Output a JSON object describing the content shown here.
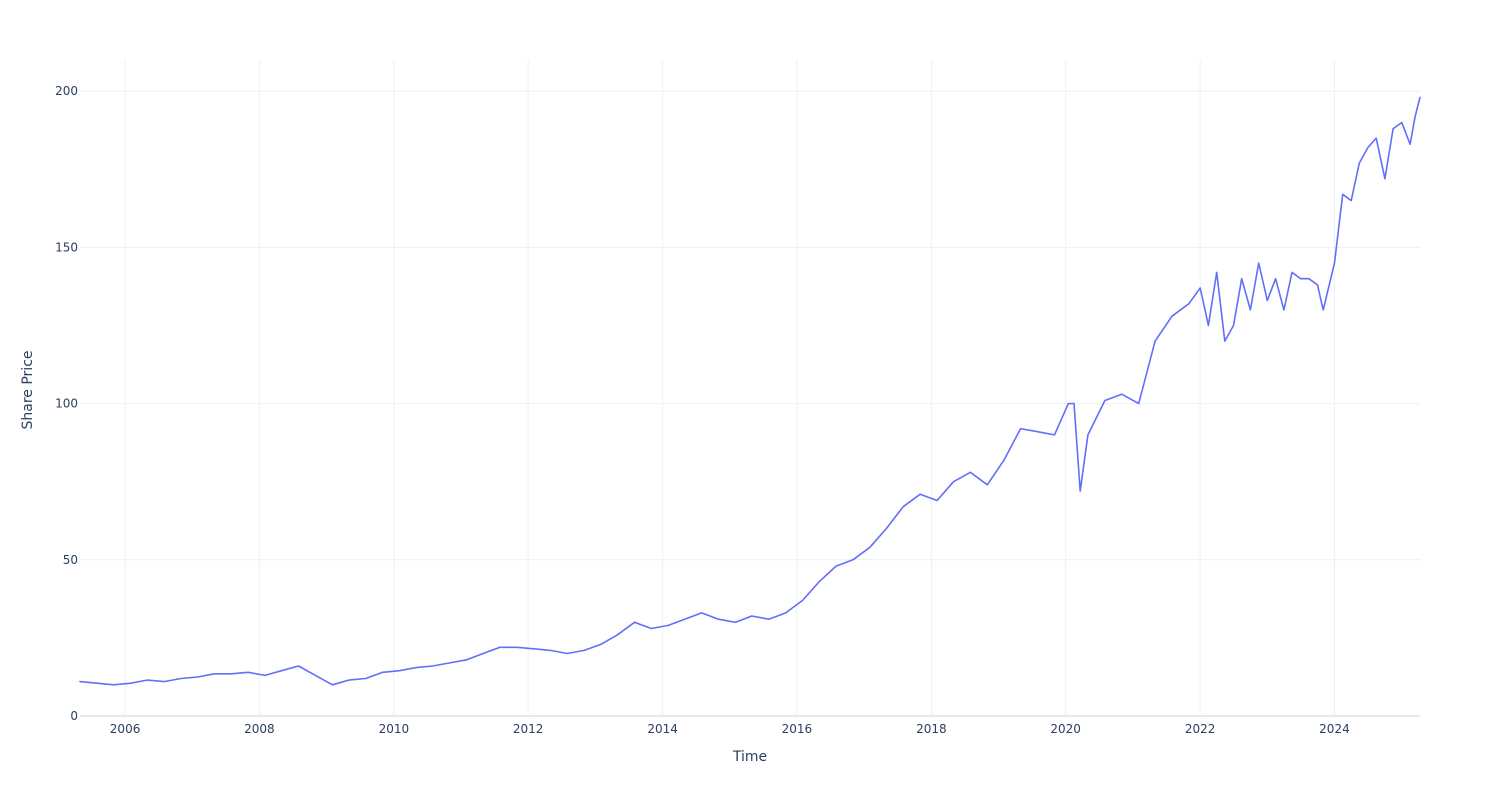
{
  "chart_data": {
    "type": "line",
    "xlabel": "Time",
    "ylabel": "Share Price",
    "xlim": [
      "2005-05-01",
      "2025-04-10"
    ],
    "ylim": [
      0,
      210
    ],
    "x_ticks": [
      "2006",
      "2008",
      "2010",
      "2012",
      "2014",
      "2016",
      "2018",
      "2020",
      "2022",
      "2024"
    ],
    "y_ticks": [
      0,
      50,
      100,
      150,
      200
    ],
    "grid": true,
    "series_color": "#636efa",
    "series": [
      {
        "x": [
          "2005-05-01",
          "2005-08-01",
          "2005-11-01",
          "2006-02-01",
          "2006-05-01",
          "2006-08-01",
          "2006-11-01",
          "2007-02-01",
          "2007-05-01",
          "2007-08-01",
          "2007-11-01",
          "2008-02-01",
          "2008-05-01",
          "2008-08-01",
          "2008-11-01",
          "2009-02-01",
          "2009-05-01",
          "2009-08-01",
          "2009-11-01",
          "2010-02-01",
          "2010-05-01",
          "2010-08-01",
          "2010-11-01",
          "2011-02-01",
          "2011-05-01",
          "2011-08-01",
          "2011-11-01",
          "2012-02-01",
          "2012-05-01",
          "2012-08-01",
          "2012-11-01",
          "2013-02-01",
          "2013-05-01",
          "2013-08-01",
          "2013-11-01",
          "2014-02-01",
          "2014-05-01",
          "2014-08-01",
          "2014-11-01",
          "2015-02-01",
          "2015-05-01",
          "2015-08-01",
          "2015-11-01",
          "2016-02-01",
          "2016-05-01",
          "2016-08-01",
          "2016-11-01",
          "2017-02-01",
          "2017-05-01",
          "2017-08-01",
          "2017-11-01",
          "2018-02-01",
          "2018-05-01",
          "2018-08-01",
          "2018-11-01",
          "2019-02-01",
          "2019-05-01",
          "2019-08-01",
          "2019-11-01",
          "2020-01-15",
          "2020-02-15",
          "2020-03-20",
          "2020-05-01",
          "2020-08-01",
          "2020-11-01",
          "2021-02-01",
          "2021-05-01",
          "2021-08-01",
          "2021-11-01",
          "2022-01-01",
          "2022-02-15",
          "2022-04-01",
          "2022-05-15",
          "2022-07-01",
          "2022-08-15",
          "2022-10-01",
          "2022-11-15",
          "2023-01-01",
          "2023-02-15",
          "2023-04-01",
          "2023-05-15",
          "2023-07-01",
          "2023-08-15",
          "2023-10-01",
          "2023-11-01",
          "2024-01-01",
          "2024-02-15",
          "2024-04-01",
          "2024-05-15",
          "2024-07-01",
          "2024-08-15",
          "2024-10-01",
          "2024-11-15",
          "2025-01-01",
          "2025-02-15",
          "2025-03-15",
          "2025-04-10"
        ],
        "y": [
          11,
          10.5,
          10,
          10.5,
          11.5,
          11,
          12,
          12.5,
          13.5,
          13.5,
          14,
          13,
          14.5,
          16,
          13,
          10,
          11.5,
          12,
          14,
          14.5,
          15.5,
          16,
          17,
          18,
          20,
          22,
          22,
          21.5,
          21,
          20,
          21,
          23,
          26,
          30,
          28,
          29,
          31,
          33,
          31,
          30,
          32,
          31,
          33,
          37,
          43,
          48,
          50,
          54,
          60,
          67,
          71,
          69,
          75,
          78,
          74,
          82,
          92,
          91,
          90,
          100,
          100,
          72,
          90,
          101,
          103,
          100,
          120,
          128,
          132,
          137,
          125,
          142,
          120,
          125,
          140,
          130,
          145,
          133,
          140,
          130,
          142,
          140,
          140,
          138,
          130,
          145,
          167,
          165,
          177,
          182,
          185,
          172,
          188,
          190,
          183,
          192,
          198
        ]
      }
    ]
  }
}
